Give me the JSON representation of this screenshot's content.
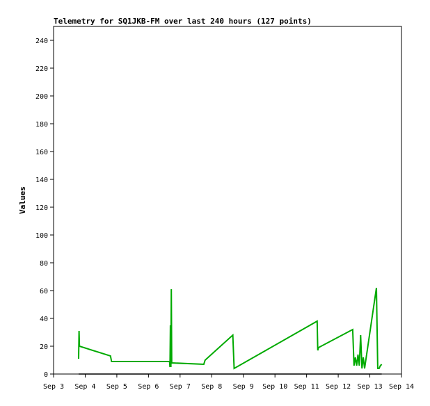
{
  "chart_data": {
    "type": "line",
    "title": "Telemetry for SQ1JKB-FM over last 240 hours (127 points)",
    "xlabel": "",
    "ylabel": "Values",
    "xlim": [
      "Sep 3",
      "Sep 14"
    ],
    "ylim": [
      0,
      250
    ],
    "y_ticks": [
      0,
      20,
      40,
      60,
      80,
      100,
      120,
      140,
      160,
      180,
      200,
      220,
      240
    ],
    "x_ticks": [
      "Sep 3",
      "Sep 4",
      "Sep 5",
      "Sep 6",
      "Sep 7",
      "Sep 8",
      "Sep 9",
      "Sep 10",
      "Sep 11",
      "Sep 12",
      "Sep 13",
      "Sep 14"
    ],
    "grid": false,
    "colors": {
      "green": "#00aa00",
      "black": "#000000"
    },
    "series": [
      {
        "color": "#00aa00",
        "points": [
          [
            "Sep 3 19:00",
            11
          ],
          [
            "Sep 3 19:20",
            31
          ],
          [
            "Sep 3 19:40",
            20
          ],
          [
            "Sep 4 19:10",
            13
          ],
          [
            "Sep 4 20:00",
            9
          ],
          [
            "Sep 6 16:00",
            9
          ],
          [
            "Sep 6 16:20",
            5
          ],
          [
            "Sep 6 16:40",
            35
          ],
          [
            "Sep 6 17:00",
            5
          ],
          [
            "Sep 6 17:20",
            61
          ],
          [
            "Sep 6 17:40",
            8
          ],
          [
            "Sep 7 18:00",
            7
          ],
          [
            "Sep 7 19:00",
            10
          ],
          [
            "Sep 8 16:00",
            28
          ],
          [
            "Sep 8 17:00",
            4
          ],
          [
            "Sep 11 08:00",
            38
          ],
          [
            "Sep 11 08:30",
            17
          ],
          [
            "Sep 11 09:00",
            19
          ],
          [
            "Sep 12 11:00",
            32
          ],
          [
            "Sep 12 12:00",
            6
          ],
          [
            "Sep 12 13:00",
            12
          ],
          [
            "Sep 12 14:00",
            6
          ],
          [
            "Sep 12 15:00",
            14
          ],
          [
            "Sep 12 16:00",
            6
          ],
          [
            "Sep 12 17:00",
            28
          ],
          [
            "Sep 12 18:00",
            4
          ],
          [
            "Sep 12 19:00",
            12
          ],
          [
            "Sep 12 20:00",
            4
          ],
          [
            "Sep 13 05:00",
            62
          ],
          [
            "Sep 13 06:00",
            4
          ],
          [
            "Sep 13 07:00",
            4
          ],
          [
            "Sep 13 08:00",
            6
          ],
          [
            "Sep 13 09:00",
            7
          ]
        ]
      },
      {
        "color": "#000000",
        "points": [
          [
            "Sep 3 19:00",
            0
          ],
          [
            "Sep 13 09:00",
            0
          ]
        ]
      }
    ]
  }
}
